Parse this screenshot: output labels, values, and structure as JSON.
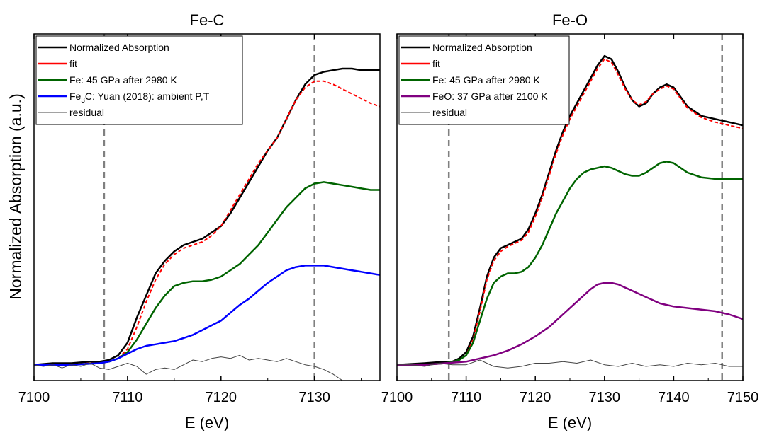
{
  "figure": {
    "ylabel": "Normalized Absorption (a.u.)"
  },
  "chart_data": [
    {
      "type": "line",
      "title": "Fe-C",
      "xlabel": "E (eV)",
      "ylabel": "Normalized Absorption (a.u.)",
      "xlim": [
        7100,
        7137
      ],
      "ylim": [
        -0.05,
        1.05
      ],
      "xticks": [
        7100,
        7110,
        7120,
        7130
      ],
      "ytick_labels": false,
      "dashed_vlines": [
        7107.5,
        7130
      ],
      "legend_position": "top-left",
      "legend": [
        {
          "label": "Normalized Absorption",
          "color": "#000000",
          "width": 2.5,
          "dash": false
        },
        {
          "label": "fit",
          "color": "#ff0000",
          "width": 2.5,
          "dash": false
        },
        {
          "label": "Fe: 45 GPa after 2980 K",
          "color": "#006400",
          "width": 2.5,
          "dash": false
        },
        {
          "label_parts": [
            "Fe",
            "3",
            "C: Yuan (2018): ambient P,T"
          ],
          "color": "#0000ff",
          "width": 2.5,
          "dash": false
        },
        {
          "label": "residual",
          "color": "#444444",
          "width": 1,
          "dash": false
        }
      ],
      "series": [
        {
          "name": "Normalized Absorption",
          "color": "#000000",
          "width": 2.5,
          "dash": false,
          "x": [
            7100,
            7102,
            7104,
            7106,
            7107,
            7108,
            7109,
            7110,
            7111,
            7112,
            7113,
            7114,
            7115,
            7116,
            7117,
            7118,
            7119,
            7120,
            7121,
            7122,
            7123,
            7124,
            7125,
            7126,
            7127,
            7128,
            7129,
            7130,
            7131,
            7132,
            7133,
            7134,
            7135,
            7136,
            7137
          ],
          "y": [
            0.0,
            0.005,
            0.005,
            0.01,
            0.01,
            0.015,
            0.03,
            0.07,
            0.15,
            0.22,
            0.29,
            0.33,
            0.36,
            0.38,
            0.39,
            0.4,
            0.42,
            0.44,
            0.48,
            0.53,
            0.58,
            0.63,
            0.68,
            0.72,
            0.78,
            0.84,
            0.89,
            0.92,
            0.93,
            0.935,
            0.94,
            0.94,
            0.935,
            0.935,
            0.935
          ]
        },
        {
          "name": "fit",
          "color": "#ff0000",
          "width": 2,
          "dash": true,
          "x": [
            7100,
            7102,
            7104,
            7106,
            7107,
            7108,
            7109,
            7110,
            7111,
            7112,
            7113,
            7114,
            7115,
            7116,
            7117,
            7118,
            7119,
            7120,
            7121,
            7122,
            7123,
            7124,
            7125,
            7126,
            7127,
            7128,
            7129,
            7130,
            7131,
            7132,
            7133,
            7134,
            7135,
            7136,
            7137
          ],
          "y": [
            0.0,
            0.0,
            0.0,
            0.005,
            0.005,
            0.01,
            0.02,
            0.05,
            0.12,
            0.2,
            0.27,
            0.32,
            0.35,
            0.37,
            0.38,
            0.39,
            0.41,
            0.44,
            0.49,
            0.54,
            0.59,
            0.64,
            0.68,
            0.72,
            0.78,
            0.84,
            0.88,
            0.9,
            0.9,
            0.89,
            0.875,
            0.86,
            0.845,
            0.83,
            0.82
          ]
        },
        {
          "name": "Fe: 45 GPa after 2980 K",
          "color": "#006400",
          "width": 2.5,
          "dash": false,
          "x": [
            7100,
            7104,
            7107,
            7108,
            7109,
            7110,
            7111,
            7112,
            7113,
            7114,
            7115,
            7116,
            7117,
            7118,
            7119,
            7120,
            7121,
            7122,
            7123,
            7124,
            7125,
            7126,
            7127,
            7128,
            7129,
            7130,
            7131,
            7132,
            7133,
            7134,
            7135,
            7136,
            7137
          ],
          "y": [
            0.0,
            0.0,
            0.005,
            0.01,
            0.02,
            0.04,
            0.08,
            0.13,
            0.18,
            0.22,
            0.25,
            0.26,
            0.265,
            0.265,
            0.27,
            0.28,
            0.3,
            0.32,
            0.35,
            0.38,
            0.42,
            0.46,
            0.5,
            0.53,
            0.56,
            0.575,
            0.58,
            0.575,
            0.57,
            0.565,
            0.56,
            0.555,
            0.555
          ]
        },
        {
          "name": "Fe3C: Yuan (2018): ambient P,T",
          "color": "#0000ff",
          "width": 2.5,
          "dash": false,
          "x": [
            7100,
            7104,
            7107,
            7108,
            7109,
            7110,
            7111,
            7112,
            7113,
            7114,
            7115,
            7116,
            7117,
            7118,
            7119,
            7120,
            7121,
            7122,
            7123,
            7124,
            7125,
            7126,
            7127,
            7128,
            7129,
            7130,
            7131,
            7132,
            7133,
            7134,
            7135,
            7136,
            7137
          ],
          "y": [
            0.0,
            0.0,
            0.005,
            0.01,
            0.02,
            0.035,
            0.05,
            0.06,
            0.065,
            0.07,
            0.075,
            0.085,
            0.095,
            0.11,
            0.125,
            0.14,
            0.165,
            0.19,
            0.21,
            0.235,
            0.26,
            0.28,
            0.3,
            0.31,
            0.315,
            0.315,
            0.315,
            0.31,
            0.305,
            0.3,
            0.295,
            0.29,
            0.285
          ]
        },
        {
          "name": "residual",
          "color": "#444444",
          "width": 1,
          "dash": false,
          "x": [
            7100,
            7101,
            7102,
            7103,
            7104,
            7105,
            7106,
            7107,
            7108,
            7109,
            7110,
            7111,
            7112,
            7113,
            7114,
            7115,
            7116,
            7117,
            7118,
            7119,
            7120,
            7121,
            7122,
            7123,
            7124,
            7125,
            7126,
            7127,
            7128,
            7129,
            7130,
            7131,
            7132,
            7133
          ],
          "y": [
            0.0,
            -0.005,
            0.0,
            -0.01,
            0.0,
            -0.005,
            0.005,
            -0.01,
            -0.015,
            -0.005,
            0.005,
            -0.005,
            -0.03,
            -0.015,
            -0.01,
            -0.015,
            0.0,
            0.015,
            0.01,
            0.02,
            0.025,
            0.02,
            0.03,
            0.015,
            0.02,
            0.015,
            0.01,
            0.02,
            0.01,
            0.0,
            -0.005,
            -0.015,
            -0.03,
            -0.05
          ]
        }
      ]
    },
    {
      "type": "line",
      "title": "Fe-O",
      "xlabel": "E (eV)",
      "ylabel": "",
      "xlim": [
        7100,
        7150
      ],
      "ylim": [
        -0.05,
        1.05
      ],
      "xticks": [
        7100,
        7110,
        7120,
        7130,
        7140,
        7150
      ],
      "ytick_labels": false,
      "dashed_vlines": [
        7107.5,
        7147
      ],
      "legend_position": "top-left",
      "legend": [
        {
          "label": "Normalized Absorption",
          "color": "#000000",
          "width": 2.5,
          "dash": false
        },
        {
          "label": "fit",
          "color": "#ff0000",
          "width": 2.5,
          "dash": false
        },
        {
          "label": "Fe: 45 GPa after 2980 K",
          "color": "#006400",
          "width": 2.5,
          "dash": false
        },
        {
          "label": "FeO: 37 GPa after 2100 K",
          "color": "#800080",
          "width": 2.5,
          "dash": false
        },
        {
          "label": "residual",
          "color": "#444444",
          "width": 1,
          "dash": false
        }
      ],
      "series": [
        {
          "name": "Normalized Absorption",
          "color": "#000000",
          "width": 2.5,
          "dash": false,
          "x": [
            7100,
            7104,
            7107,
            7108,
            7109,
            7110,
            7111,
            7112,
            7113,
            7114,
            7115,
            7116,
            7117,
            7118,
            7119,
            7120,
            7121,
            7122,
            7123,
            7124,
            7125,
            7126,
            7127,
            7128,
            7129,
            7130,
            7131,
            7132,
            7133,
            7134,
            7135,
            7136,
            7137,
            7138,
            7139,
            7140,
            7141,
            7142,
            7144,
            7146,
            7148,
            7150
          ],
          "y": [
            0.0,
            0.005,
            0.01,
            0.01,
            0.02,
            0.04,
            0.09,
            0.18,
            0.28,
            0.34,
            0.37,
            0.38,
            0.39,
            0.4,
            0.43,
            0.48,
            0.54,
            0.61,
            0.68,
            0.74,
            0.79,
            0.83,
            0.87,
            0.91,
            0.95,
            0.98,
            0.97,
            0.93,
            0.88,
            0.84,
            0.82,
            0.83,
            0.86,
            0.88,
            0.89,
            0.88,
            0.85,
            0.82,
            0.79,
            0.78,
            0.77,
            0.76
          ]
        },
        {
          "name": "fit",
          "color": "#ff0000",
          "width": 2,
          "dash": true,
          "x": [
            7100,
            7104,
            7107,
            7108,
            7109,
            7110,
            7111,
            7112,
            7113,
            7114,
            7115,
            7116,
            7117,
            7118,
            7119,
            7120,
            7121,
            7122,
            7123,
            7124,
            7125,
            7126,
            7127,
            7128,
            7129,
            7130,
            7131,
            7132,
            7133,
            7134,
            7135,
            7136,
            7137,
            7138,
            7139,
            7140,
            7141,
            7142,
            7144,
            7146,
            7148,
            7150
          ],
          "y": [
            0.0,
            0.0,
            0.005,
            0.01,
            0.015,
            0.03,
            0.08,
            0.17,
            0.27,
            0.33,
            0.36,
            0.375,
            0.385,
            0.395,
            0.42,
            0.47,
            0.53,
            0.6,
            0.67,
            0.73,
            0.78,
            0.82,
            0.86,
            0.9,
            0.94,
            0.97,
            0.96,
            0.92,
            0.875,
            0.84,
            0.825,
            0.835,
            0.86,
            0.875,
            0.885,
            0.875,
            0.845,
            0.815,
            0.785,
            0.77,
            0.76,
            0.75
          ]
        },
        {
          "name": "Fe: 45 GPa after 2980 K",
          "color": "#006400",
          "width": 2.5,
          "dash": false,
          "x": [
            7100,
            7104,
            7107,
            7108,
            7109,
            7110,
            7111,
            7112,
            7113,
            7114,
            7115,
            7116,
            7117,
            7118,
            7119,
            7120,
            7121,
            7122,
            7123,
            7124,
            7125,
            7126,
            7127,
            7128,
            7129,
            7130,
            7131,
            7132,
            7133,
            7134,
            7135,
            7136,
            7137,
            7138,
            7139,
            7140,
            7141,
            7142,
            7144,
            7146,
            7148,
            7150
          ],
          "y": [
            0.0,
            0.0,
            0.005,
            0.01,
            0.015,
            0.03,
            0.07,
            0.14,
            0.21,
            0.26,
            0.28,
            0.29,
            0.29,
            0.295,
            0.31,
            0.34,
            0.38,
            0.43,
            0.48,
            0.52,
            0.56,
            0.59,
            0.61,
            0.62,
            0.625,
            0.63,
            0.625,
            0.615,
            0.605,
            0.6,
            0.6,
            0.61,
            0.625,
            0.64,
            0.645,
            0.64,
            0.625,
            0.61,
            0.595,
            0.59,
            0.59,
            0.59
          ]
        },
        {
          "name": "FeO: 37 GPa after 2100 K",
          "color": "#800080",
          "width": 2.5,
          "dash": false,
          "x": [
            7100,
            7104,
            7107,
            7110,
            7112,
            7114,
            7116,
            7118,
            7120,
            7122,
            7124,
            7126,
            7128,
            7129,
            7130,
            7131,
            7132,
            7133,
            7134,
            7135,
            7136,
            7137,
            7138,
            7139,
            7140,
            7142,
            7144,
            7146,
            7148,
            7150
          ],
          "y": [
            0.0,
            0.0,
            0.005,
            0.01,
            0.02,
            0.03,
            0.045,
            0.065,
            0.09,
            0.12,
            0.16,
            0.2,
            0.24,
            0.255,
            0.26,
            0.26,
            0.255,
            0.245,
            0.235,
            0.225,
            0.215,
            0.205,
            0.195,
            0.19,
            0.185,
            0.18,
            0.175,
            0.17,
            0.16,
            0.145
          ]
        },
        {
          "name": "residual",
          "color": "#444444",
          "width": 1,
          "dash": false,
          "x": [
            7100,
            7102,
            7104,
            7106,
            7108,
            7110,
            7112,
            7114,
            7116,
            7118,
            7120,
            7122,
            7124,
            7126,
            7128,
            7130,
            7132,
            7134,
            7136,
            7138,
            7140,
            7142,
            7144,
            7146,
            7148,
            7150
          ],
          "y": [
            0.0,
            0.0,
            -0.005,
            0.005,
            0.0,
            0.0,
            0.015,
            -0.005,
            -0.01,
            -0.005,
            0.005,
            0.005,
            0.01,
            0.005,
            0.015,
            0.0,
            -0.005,
            0.005,
            -0.005,
            0.0,
            -0.005,
            0.005,
            0.0,
            0.005,
            -0.005,
            -0.005
          ]
        }
      ]
    }
  ]
}
